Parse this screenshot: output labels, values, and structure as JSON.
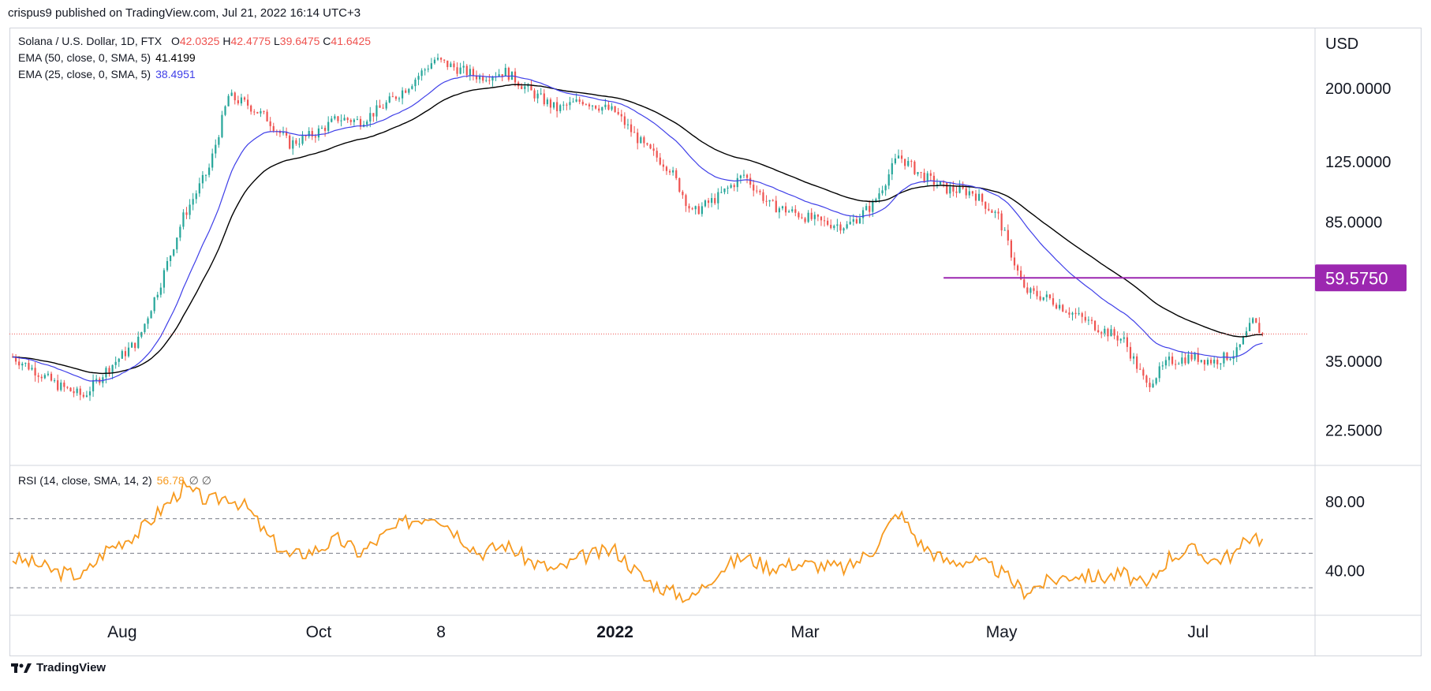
{
  "header": {
    "publisher": "crispus9 published on TradingView.com, Jul 21, 2022 16:14 UTC+3"
  },
  "legend": {
    "symbol": "Solana / U.S. Dollar, 1D, FTX",
    "ohlc": {
      "o_label": "O",
      "o": "42.0325",
      "h_label": "H",
      "h": "42.4775",
      "l_label": "L",
      "l": "39.6475",
      "c_label": "C",
      "c": "41.6425"
    },
    "ema50": {
      "label": "EMA (50, close, 0, SMA, 5)",
      "value": "41.4199"
    },
    "ema25": {
      "label": "EMA (25, close, 0, SMA, 5)",
      "value": "38.4951"
    },
    "rsi": {
      "label": "RSI (14, close, SMA, 14, 2)",
      "value": "56.78",
      "extra": "∅ ∅"
    }
  },
  "colors": {
    "up": "#26a69a",
    "down": "#ef5350",
    "ema50": "#000000",
    "ema25": "#3f3fe8",
    "rsi": "#f79a1f",
    "level": "#9c27b0",
    "last_price_line": "#ef5350"
  },
  "footer": {
    "brand": "TradingView",
    "icon": "tradingview-logo-icon"
  },
  "chart_data": [
    {
      "type": "candlestick",
      "title": "Solana / U.S. Dollar, 1D, FTX",
      "y_axis": {
        "unit": "USD",
        "scale": "log",
        "ticks": [
          "200.0000",
          "125.0000",
          "85.0000",
          "59.5750",
          "35.0000",
          "22.5000"
        ],
        "ylim": [
          18,
          290
        ]
      },
      "x_axis": {
        "ticks": [
          "Aug",
          "Oct",
          "8",
          "2022",
          "Mar",
          "May",
          "Jul"
        ]
      },
      "horizontal_level": {
        "value": 59.575,
        "label": "59.5750",
        "from": "2022-04-13",
        "to": "2022-07-21"
      },
      "last_close": 41.6425,
      "series": [
        {
          "name": "EMA (50, close, 0, SMA, 5)",
          "last": 41.4199
        },
        {
          "name": "EMA (25, close, 0, SMA, 5)",
          "last": 38.4951
        }
      ],
      "price_path": [
        [
          "2021-06-28",
          36
        ],
        [
          "2021-07-05",
          33
        ],
        [
          "2021-07-12",
          30
        ],
        [
          "2021-07-20",
          28
        ],
        [
          "2021-07-27",
          33
        ],
        [
          "2021-08-06",
          40
        ],
        [
          "2021-08-13",
          58
        ],
        [
          "2021-08-20",
          88
        ],
        [
          "2021-08-28",
          120
        ],
        [
          "2021-09-03",
          190
        ],
        [
          "2021-09-09",
          180
        ],
        [
          "2021-09-15",
          165
        ],
        [
          "2021-09-22",
          140
        ],
        [
          "2021-09-30",
          150
        ],
        [
          "2021-10-07",
          165
        ],
        [
          "2021-10-14",
          162
        ],
        [
          "2021-10-21",
          178
        ],
        [
          "2021-10-28",
          200
        ],
        [
          "2021-11-06",
          240
        ],
        [
          "2021-11-14",
          225
        ],
        [
          "2021-11-20",
          215
        ],
        [
          "2021-11-28",
          222
        ],
        [
          "2021-12-06",
          195
        ],
        [
          "2021-12-14",
          175
        ],
        [
          "2021-12-22",
          185
        ],
        [
          "2022-01-01",
          172
        ],
        [
          "2022-01-10",
          138
        ],
        [
          "2022-01-18",
          120
        ],
        [
          "2022-01-25",
          90
        ],
        [
          "2022-02-02",
          100
        ],
        [
          "2022-02-10",
          115
        ],
        [
          "2022-02-18",
          95
        ],
        [
          "2022-02-26",
          90
        ],
        [
          "2022-03-06",
          85
        ],
        [
          "2022-03-14",
          83
        ],
        [
          "2022-03-22",
          95
        ],
        [
          "2022-03-30",
          130
        ],
        [
          "2022-04-06",
          115
        ],
        [
          "2022-04-14",
          105
        ],
        [
          "2022-04-22",
          103
        ],
        [
          "2022-04-30",
          88
        ],
        [
          "2022-05-08",
          55
        ],
        [
          "2022-05-16",
          52
        ],
        [
          "2022-05-24",
          47
        ],
        [
          "2022-06-01",
          43
        ],
        [
          "2022-06-08",
          40
        ],
        [
          "2022-06-15",
          30
        ],
        [
          "2022-06-22",
          35
        ],
        [
          "2022-06-29",
          36
        ],
        [
          "2022-07-06",
          35
        ],
        [
          "2022-07-13",
          37
        ],
        [
          "2022-07-18",
          45
        ],
        [
          "2022-07-21",
          41.64
        ]
      ]
    },
    {
      "type": "line",
      "title": "RSI (14, close, SMA, 14, 2)",
      "y_axis": {
        "ticks": [
          "80.00",
          "40.00"
        ],
        "ylim": [
          15,
          100
        ],
        "bands": [
          70,
          50,
          30
        ]
      },
      "last": 56.78,
      "series": [
        {
          "name": "RSI (14, close, SMA, 14, 2)",
          "points": [
            [
              "2021-06-28",
              47
            ],
            [
              "2021-07-05",
              44
            ],
            [
              "2021-07-12",
              39
            ],
            [
              "2021-07-20",
              37
            ],
            [
              "2021-07-27",
              52
            ],
            [
              "2021-08-06",
              62
            ],
            [
              "2021-08-13",
              75
            ],
            [
              "2021-08-20",
              88
            ],
            [
              "2021-08-28",
              80
            ],
            [
              "2021-09-03",
              83
            ],
            [
              "2021-09-09",
              76
            ],
            [
              "2021-09-15",
              60
            ],
            [
              "2021-09-22",
              48
            ],
            [
              "2021-09-30",
              52
            ],
            [
              "2021-10-07",
              58
            ],
            [
              "2021-10-14",
              50
            ],
            [
              "2021-10-21",
              60
            ],
            [
              "2021-10-28",
              68
            ],
            [
              "2021-11-06",
              73
            ],
            [
              "2021-11-14",
              60
            ],
            [
              "2021-11-20",
              50
            ],
            [
              "2021-11-28",
              55
            ],
            [
              "2021-12-06",
              45
            ],
            [
              "2021-12-14",
              40
            ],
            [
              "2021-12-22",
              48
            ],
            [
              "2022-01-01",
              52
            ],
            [
              "2022-01-10",
              35
            ],
            [
              "2022-01-18",
              28
            ],
            [
              "2022-01-25",
              24
            ],
            [
              "2022-02-02",
              40
            ],
            [
              "2022-02-10",
              48
            ],
            [
              "2022-02-18",
              42
            ],
            [
              "2022-02-26",
              44
            ],
            [
              "2022-03-06",
              43
            ],
            [
              "2022-03-14",
              41
            ],
            [
              "2022-03-22",
              52
            ],
            [
              "2022-03-30",
              74
            ],
            [
              "2022-04-06",
              55
            ],
            [
              "2022-04-14",
              45
            ],
            [
              "2022-04-22",
              46
            ],
            [
              "2022-04-30",
              40
            ],
            [
              "2022-05-08",
              28
            ],
            [
              "2022-05-16",
              34
            ],
            [
              "2022-05-24",
              38
            ],
            [
              "2022-06-01",
              36
            ],
            [
              "2022-06-08",
              38
            ],
            [
              "2022-06-15",
              30
            ],
            [
              "2022-06-22",
              48
            ],
            [
              "2022-06-29",
              52
            ],
            [
              "2022-07-06",
              46
            ],
            [
              "2022-07-13",
              50
            ],
            [
              "2022-07-18",
              62
            ],
            [
              "2022-07-21",
              56.78
            ]
          ]
        }
      ]
    }
  ]
}
